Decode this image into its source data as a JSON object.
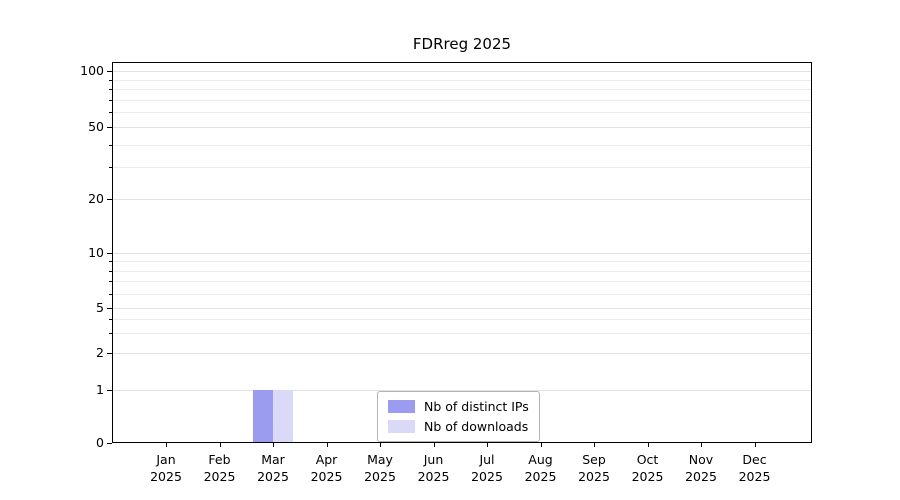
{
  "chart_data": {
    "type": "bar",
    "title": "FDRreg 2025",
    "categories": [
      "Jan",
      "Feb",
      "Mar",
      "Apr",
      "May",
      "Jun",
      "Jul",
      "Aug",
      "Sep",
      "Oct",
      "Nov",
      "Dec"
    ],
    "category_year": "2025",
    "series": [
      {
        "name": "Nb of distinct IPs",
        "color": "#9b9bef",
        "values": [
          0,
          0,
          1,
          0,
          0,
          0,
          0,
          0,
          0,
          0,
          0,
          0
        ]
      },
      {
        "name": "Nb of downloads",
        "color": "#dadaf8",
        "values": [
          0,
          0,
          1,
          0,
          0,
          0,
          0,
          0,
          0,
          0,
          0,
          0
        ]
      }
    ],
    "y_ticks": [
      0,
      1,
      2,
      5,
      10,
      20,
      50,
      100
    ],
    "ylim": [
      0,
      100
    ],
    "yscale": "log-like",
    "grid": true,
    "legend_position": "lower-center"
  }
}
